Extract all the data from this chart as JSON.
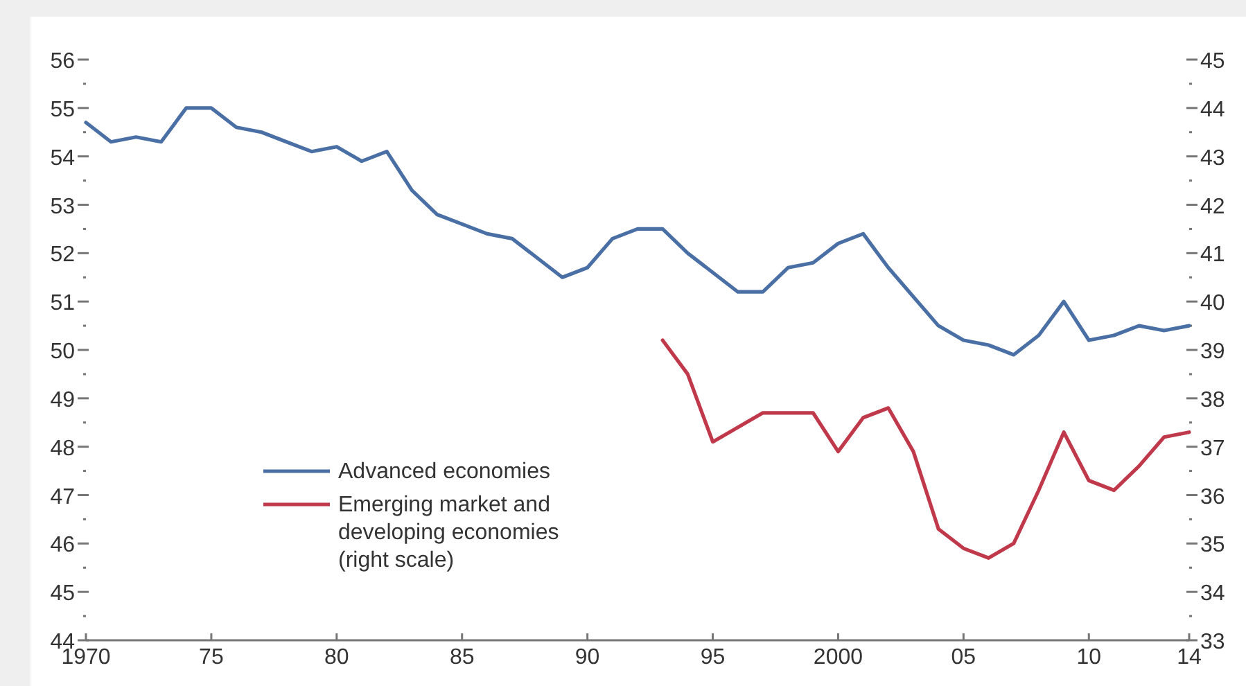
{
  "chart_data": {
    "type": "line",
    "x": [
      1970,
      1971,
      1972,
      1973,
      1974,
      1975,
      1976,
      1977,
      1978,
      1979,
      1980,
      1981,
      1982,
      1983,
      1984,
      1985,
      1986,
      1987,
      1988,
      1989,
      1990,
      1991,
      1992,
      1993,
      1994,
      1995,
      1996,
      1997,
      1998,
      1999,
      2000,
      2001,
      2002,
      2003,
      2004,
      2005,
      2006,
      2007,
      2008,
      2009,
      2010,
      2011,
      2012,
      2013,
      2014
    ],
    "series": [
      {
        "name": "Advanced economies",
        "color": "#4a6fa5",
        "values": [
          54.7,
          54.3,
          54.4,
          54.3,
          55.0,
          55.0,
          54.6,
          54.5,
          54.3,
          54.1,
          54.2,
          53.9,
          54.1,
          53.3,
          52.8,
          52.6,
          52.4,
          52.3,
          51.9,
          51.5,
          51.7,
          52.3,
          52.5,
          52.5,
          52.0,
          51.6,
          51.2,
          51.2,
          51.7,
          51.8,
          52.2,
          52.4,
          51.7,
          51.1,
          50.5,
          50.2,
          50.1,
          49.9,
          50.3,
          51.0,
          50.2,
          50.3,
          50.5,
          50.4,
          50.5
        ]
      },
      {
        "name": "Emerging market and developing economies (right scale)",
        "color": "#c0394b",
        "axis": "y2",
        "values": [
          null,
          null,
          null,
          null,
          null,
          null,
          null,
          null,
          null,
          null,
          null,
          null,
          null,
          null,
          null,
          null,
          null,
          null,
          null,
          null,
          null,
          null,
          null,
          39.2,
          38.5,
          37.1,
          37.4,
          37.7,
          37.7,
          37.7,
          36.9,
          37.6,
          37.8,
          36.9,
          35.3,
          34.9,
          34.7,
          35.0,
          36.1,
          37.3,
          36.3,
          36.1,
          36.6,
          37.2,
          37.3
        ]
      }
    ],
    "xlim": [
      1970,
      2014
    ],
    "xticks": [
      1970,
      {
        "value": 1975,
        "label": "75"
      },
      {
        "value": 1980,
        "label": "80"
      },
      {
        "value": 1985,
        "label": "85"
      },
      {
        "value": 1990,
        "label": "90"
      },
      {
        "value": 1995,
        "label": "95"
      },
      2000,
      {
        "value": 2005,
        "label": "05"
      },
      {
        "value": 2010,
        "label": "10"
      },
      {
        "value": 2014,
        "label": "14"
      }
    ],
    "ylim": [
      44,
      56
    ],
    "yticks": [
      44,
      {
        "value": 44.5,
        "label": null
      },
      45,
      {
        "value": 45.5,
        "label": null
      },
      46,
      {
        "value": 46.5,
        "label": null
      },
      47,
      {
        "value": 47.5,
        "label": null
      },
      48,
      {
        "value": 48.5,
        "label": null
      },
      49,
      {
        "value": 49.5,
        "label": null
      },
      50,
      {
        "value": 50.5,
        "label": null
      },
      51,
      {
        "value": 51.5,
        "label": null
      },
      52,
      {
        "value": 52.5,
        "label": null
      },
      53,
      {
        "value": 53.5,
        "label": null
      },
      54,
      {
        "value": 54.5,
        "label": null
      },
      55,
      {
        "value": 55.5,
        "label": null
      },
      56
    ],
    "y2lim": [
      33,
      45
    ],
    "y2ticks": [
      33,
      {
        "value": 33.5,
        "label": null
      },
      34,
      {
        "value": 34.5,
        "label": null
      },
      35,
      {
        "value": 35.5,
        "label": null
      },
      36,
      {
        "value": 36.5,
        "label": null
      },
      37,
      {
        "value": 37.5,
        "label": null
      },
      38,
      {
        "value": 38.5,
        "label": null
      },
      39,
      {
        "value": 39.5,
        "label": null
      },
      40,
      {
        "value": 40.5,
        "label": null
      },
      41,
      {
        "value": 41.5,
        "label": null
      },
      42,
      {
        "value": 42.5,
        "label": null
      },
      43,
      {
        "value": 43.5,
        "label": null
      },
      44,
      {
        "value": 44.5,
        "label": null
      },
      45
    ],
    "grid": false,
    "legend": "bottom left",
    "marker": "none",
    "line_style": "solid"
  }
}
